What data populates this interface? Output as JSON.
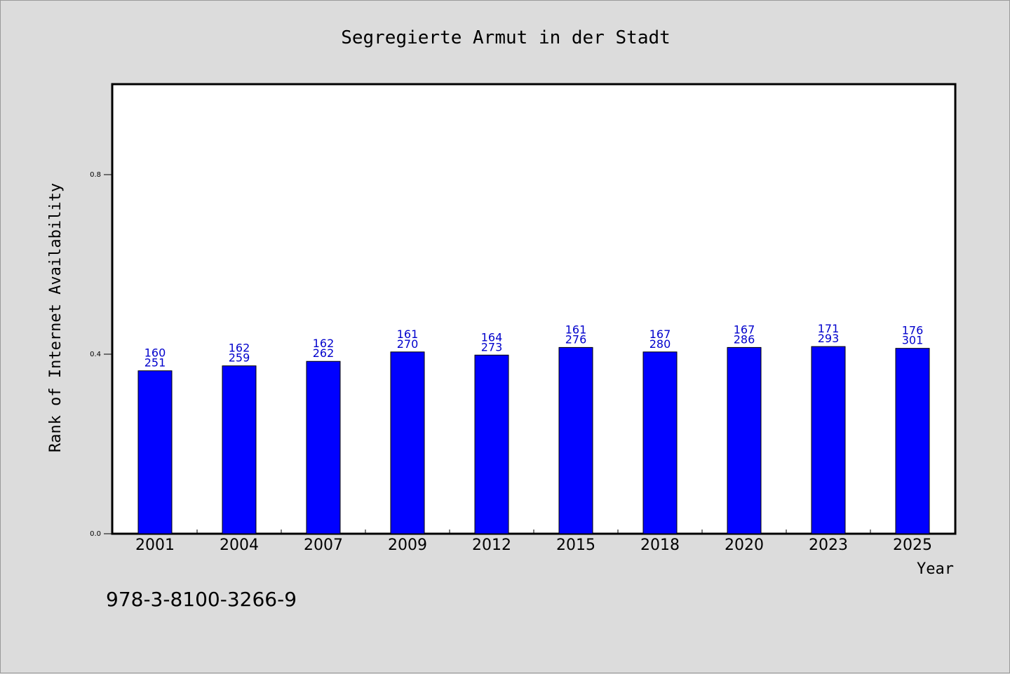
{
  "chart_data": {
    "type": "bar",
    "title": "Segregierte Armut in der Stadt",
    "xlabel": "Year",
    "ylabel": "Rank of Internet Availability",
    "categories": [
      "2001",
      "2004",
      "2007",
      "2009",
      "2012",
      "2015",
      "2018",
      "2020",
      "2023",
      "2025"
    ],
    "values": [
      0.363,
      0.374,
      0.384,
      0.405,
      0.398,
      0.415,
      0.405,
      0.415,
      0.417,
      0.413
    ],
    "labels_top": [
      "160",
      "162",
      "162",
      "161",
      "164",
      "161",
      "167",
      "167",
      "171",
      "176"
    ],
    "labels_bottom": [
      "251",
      "259",
      "262",
      "270",
      "273",
      "276",
      "280",
      "286",
      "293",
      "301"
    ],
    "yticks": [
      0.0,
      0.4,
      0.8
    ],
    "ytick_labels": [
      "0.0",
      "0.4",
      "0.8"
    ],
    "ylim": [
      0,
      1.0
    ],
    "grid": false,
    "bar_color": "#0000ff",
    "label_color": "#0000cc"
  },
  "footer": {
    "isbn": "978-3-8100-3266-9"
  }
}
